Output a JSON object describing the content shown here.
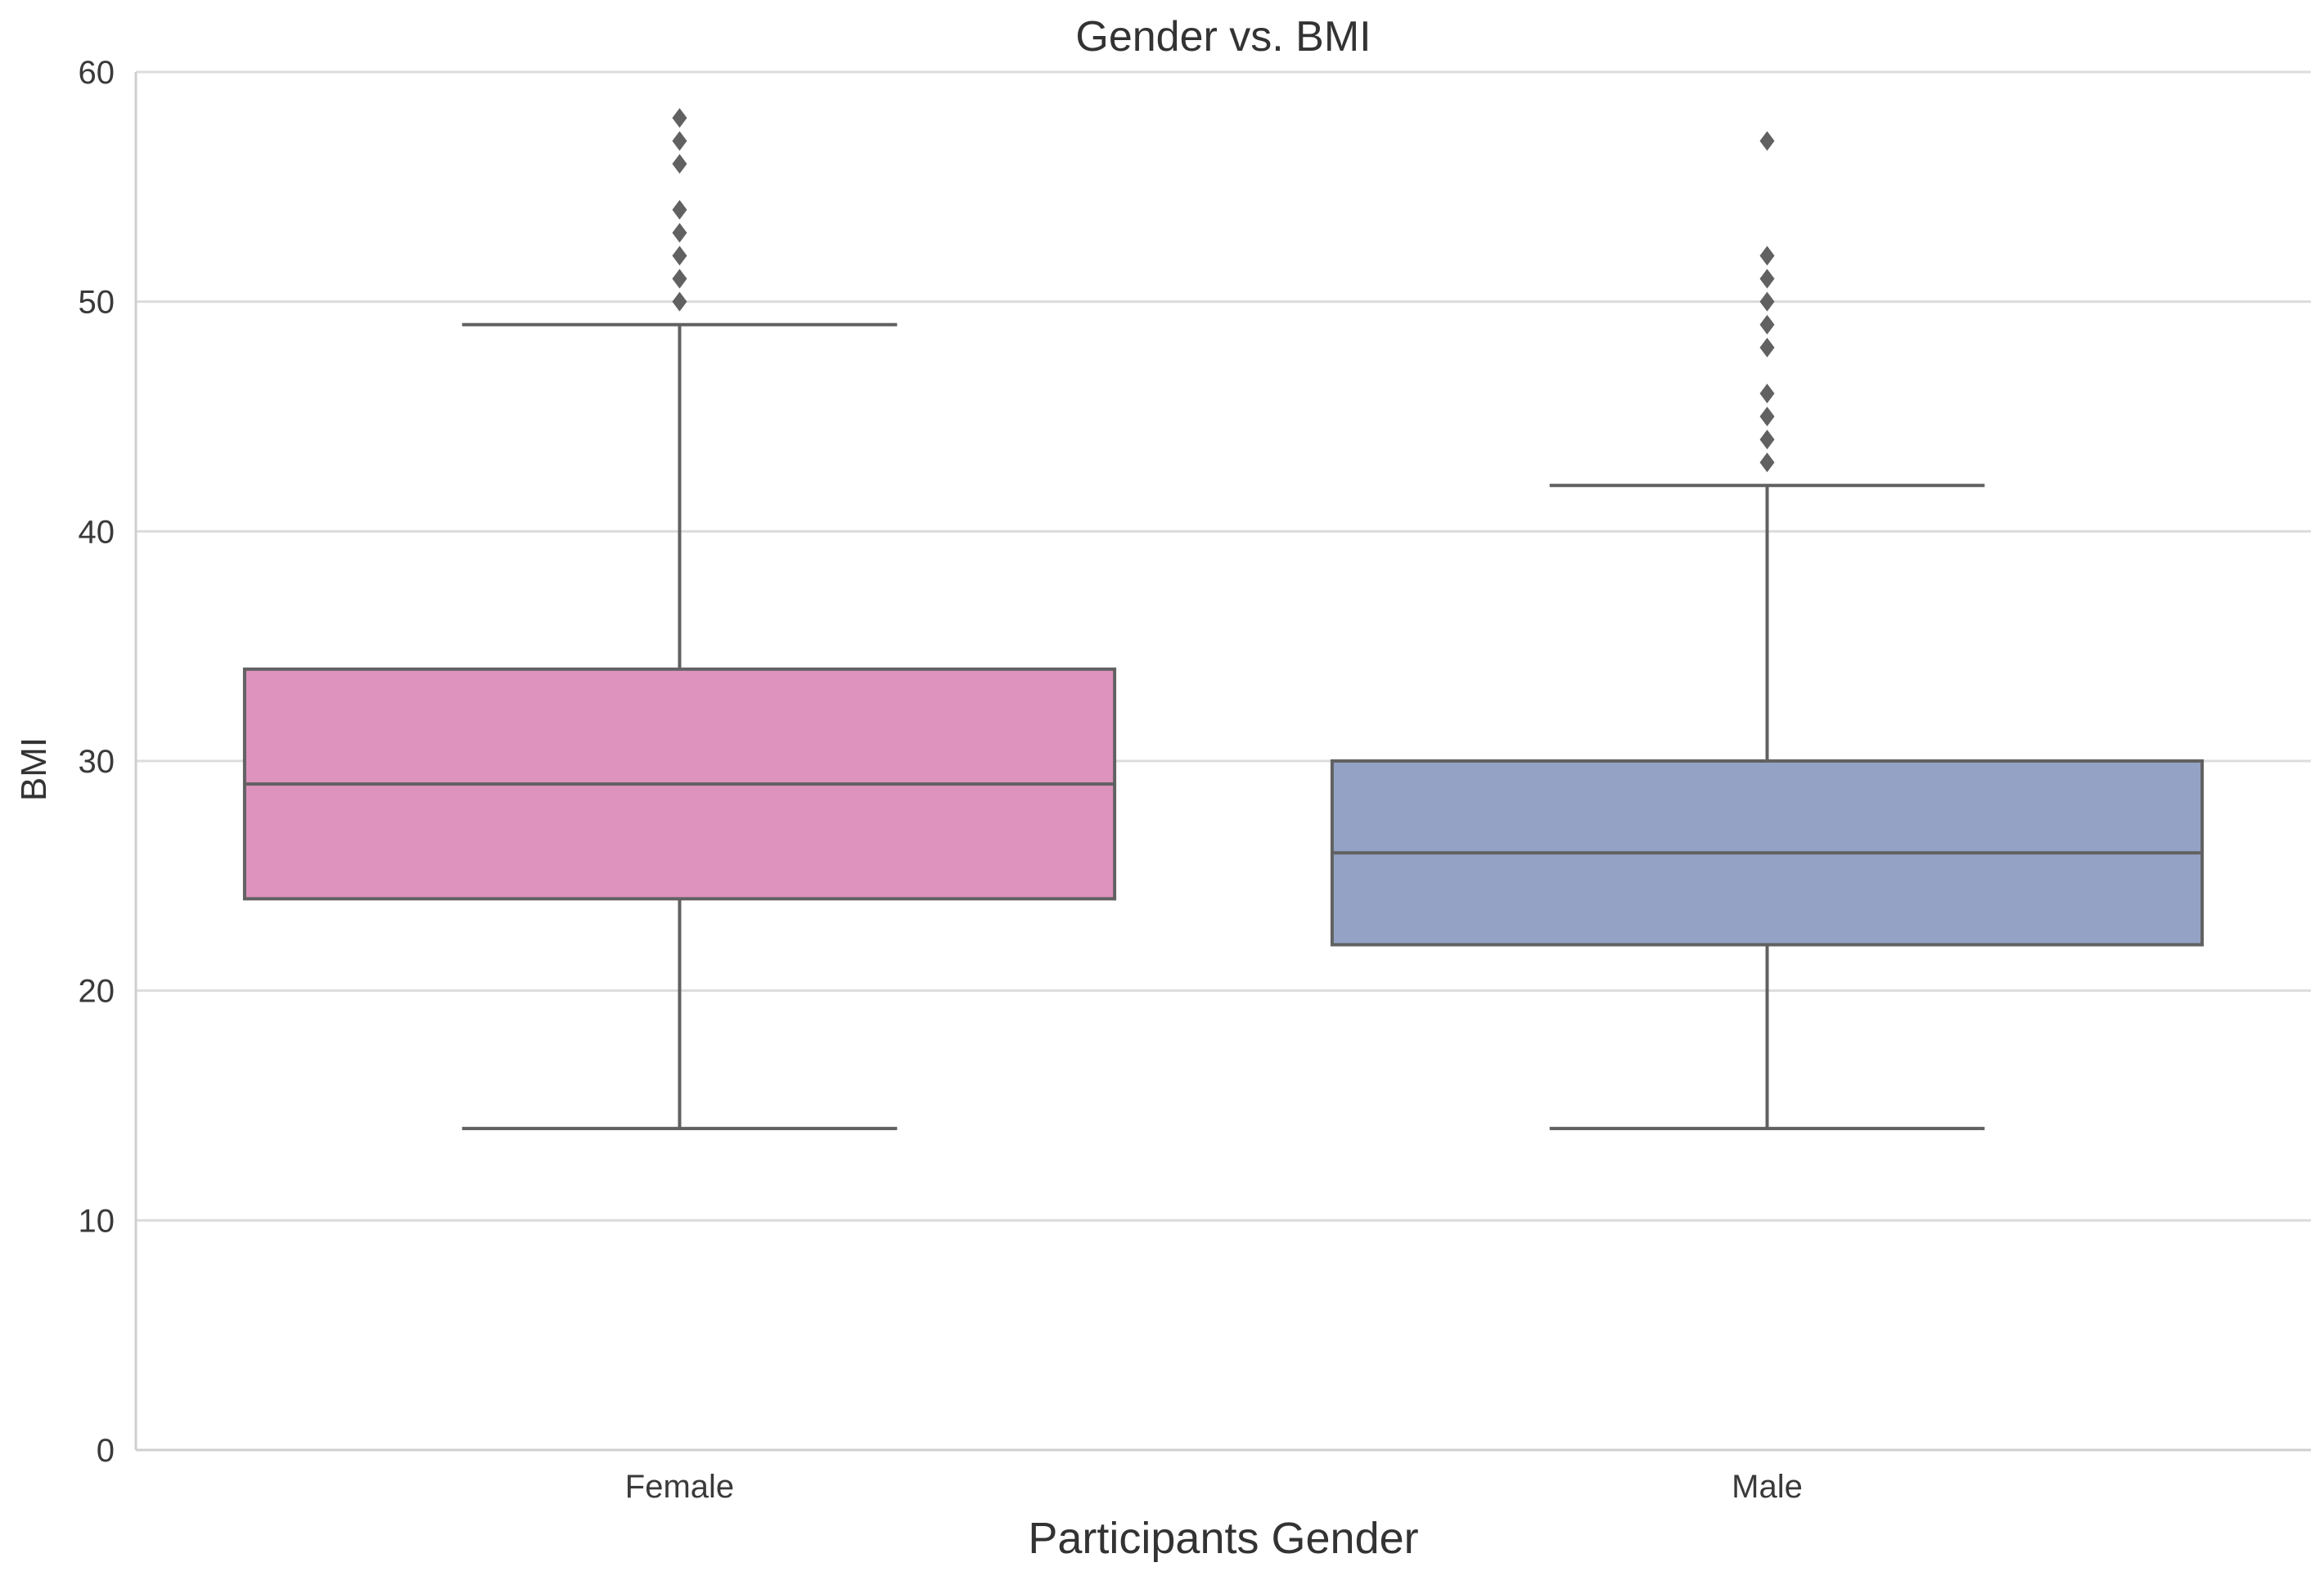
{
  "chart_data": {
    "type": "box",
    "title": "Gender vs. BMI",
    "xlabel": "Participants Gender",
    "ylabel": "BMI",
    "ylim": [
      0,
      60
    ],
    "yticks": [
      0,
      10,
      20,
      30,
      40,
      50,
      60
    ],
    "grid": true,
    "categories": [
      "Female",
      "Male"
    ],
    "series": [
      {
        "name": "Female",
        "color": "#dd93be",
        "whisker_low": 14,
        "q1": 24,
        "median": 29,
        "q3": 34,
        "whisker_high": 49,
        "outliers": [
          50,
          51,
          52,
          53,
          54,
          56,
          57,
          58
        ]
      },
      {
        "name": "Male",
        "color": "#94a3c5",
        "whisker_low": 14,
        "q1": 22,
        "median": 26,
        "q3": 30,
        "whisker_high": 42,
        "outliers": [
          43,
          44,
          45,
          46,
          48,
          49,
          50,
          51,
          52,
          57
        ]
      }
    ],
    "line_color": "#616161"
  }
}
